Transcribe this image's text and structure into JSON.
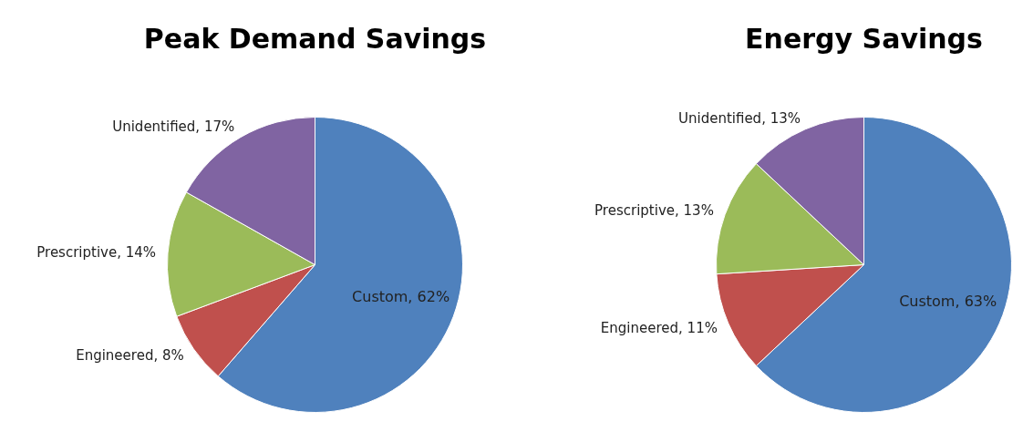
{
  "chart_data": [
    {
      "type": "pie",
      "title": "Peak Demand Savings",
      "categories": [
        "Custom",
        "Engineered",
        "Prescriptive",
        "Unidentified"
      ],
      "values": [
        62,
        8,
        14,
        17
      ],
      "colors": [
        "#4f81bd",
        "#c0504d",
        "#9bbb59",
        "#8064a2"
      ],
      "value_labels": [
        "62%",
        "8%",
        "14%",
        "17%"
      ]
    },
    {
      "type": "pie",
      "title": "Energy Savings",
      "categories": [
        "Custom",
        "Engineered",
        "Prescriptive",
        "Unidentified"
      ],
      "values": [
        63,
        11,
        13,
        13
      ],
      "colors": [
        "#4f81bd",
        "#c0504d",
        "#9bbb59",
        "#8064a2"
      ],
      "value_labels": [
        "63%",
        "11%",
        "13%",
        "13%"
      ]
    }
  ]
}
